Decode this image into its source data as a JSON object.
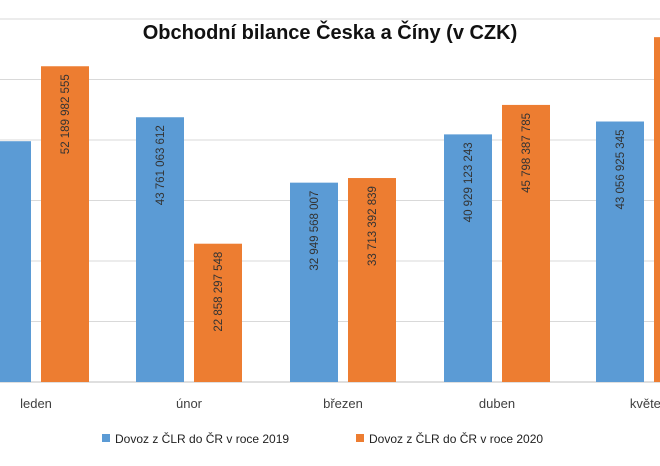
{
  "chart_data": {
    "type": "bar",
    "title": "Obchodní bilance Česka a Číny (v CZK)",
    "categories": [
      "leden",
      "únor",
      "březen",
      "duben",
      "květen"
    ],
    "series": [
      {
        "name": "Dovoz z ČLR do ČR v roce 2019",
        "color": "#5b9bd5",
        "values": [
          39800000000,
          43761063612,
          32949568007,
          40929123243,
          43056925345
        ],
        "labels": [
          "",
          "43 761 063 612",
          "32 949 568 007",
          "40 929 123 243",
          "43 056 925 345"
        ]
      },
      {
        "name": "Dovoz z ČLR do ČR v roce 2020",
        "color": "#ed7d31",
        "values": [
          52189982555,
          22858297548,
          33713392839,
          45798387785,
          57000000000
        ],
        "labels": [
          "52 189 982 555",
          "22 858 297 548",
          "33 713 392 839",
          "45 798 387 785",
          ""
        ]
      }
    ],
    "ylim": [
      0,
      60000000000
    ],
    "gridlines": [
      0,
      10000000000,
      20000000000,
      30000000000,
      40000000000,
      50000000000,
      60000000000
    ],
    "grid": true,
    "legend": "bottom",
    "xlabel": "",
    "ylabel": ""
  }
}
